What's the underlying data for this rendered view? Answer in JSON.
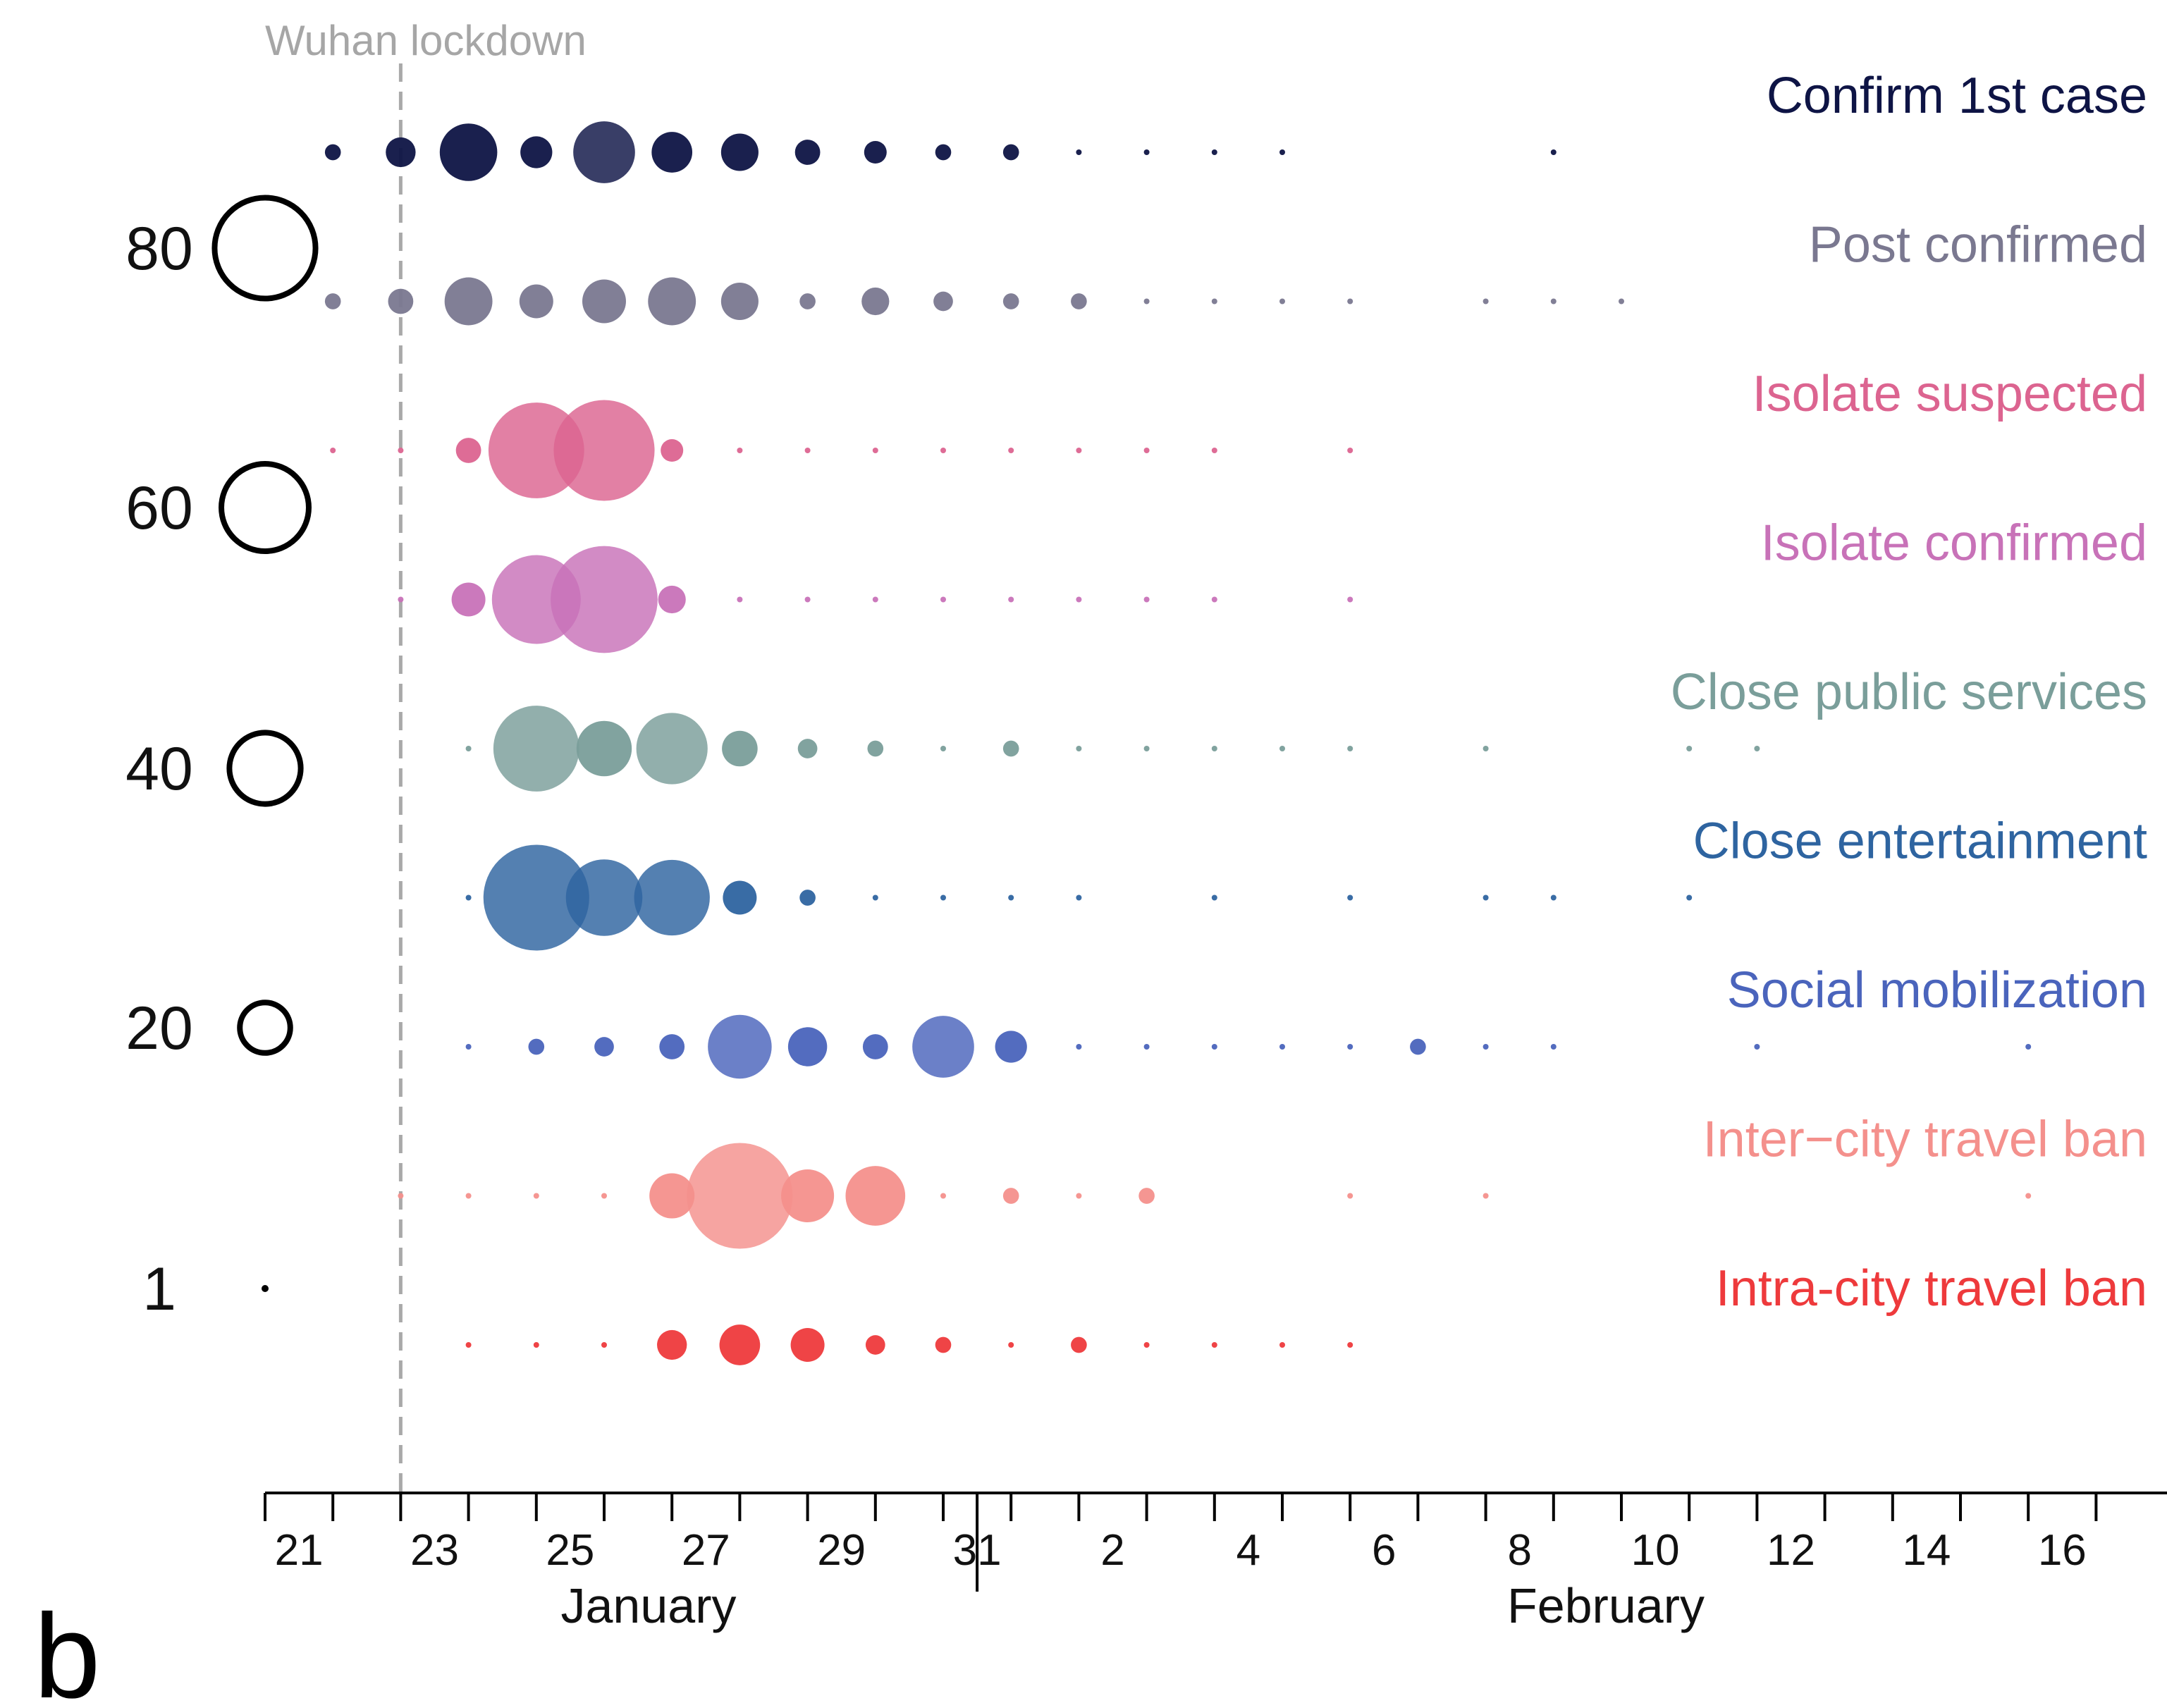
{
  "panel_label": "b",
  "chart_data": {
    "type": "scatter",
    "subtype": "bubble",
    "annotation": {
      "x": "Jan 23",
      "label": "Wuhan lockdown"
    },
    "x_axis": {
      "tick_labels": [
        "21",
        "23",
        "25",
        "27",
        "29",
        "31",
        "2",
        "4",
        "6",
        "8",
        "10",
        "12",
        "14",
        "16"
      ],
      "month_labels": [
        "January",
        "February"
      ],
      "range": [
        "Jan 21",
        "Feb 17"
      ]
    },
    "size_legend": {
      "values": [
        80,
        60,
        40,
        20,
        1
      ],
      "labels": [
        "80",
        "60",
        "40",
        "20",
        "1"
      ]
    },
    "series": [
      {
        "name": "Confirm 1st case",
        "color": "#0e1445",
        "points": [
          [
            "Jan 22",
            2
          ],
          [
            "Jan 23",
            7
          ],
          [
            "Jan 24",
            26
          ],
          [
            "Jan 25",
            8
          ],
          [
            "Jan 26",
            30
          ],
          [
            "Jan 27",
            13
          ],
          [
            "Jan 28",
            11
          ],
          [
            "Jan 29",
            5
          ],
          [
            "Jan 30",
            4
          ],
          [
            "Jan 31",
            2
          ],
          [
            "Feb 1",
            2
          ],
          [
            "Feb 2",
            1
          ],
          [
            "Feb 3",
            1
          ],
          [
            "Feb 4",
            1
          ],
          [
            "Feb 5",
            1
          ],
          [
            "Feb 9",
            1
          ]
        ]
      },
      {
        "name": "Post confirmed",
        "color": "#7a7890",
        "points": [
          [
            "Jan 22",
            2
          ],
          [
            "Jan 23",
            5
          ],
          [
            "Jan 24",
            18
          ],
          [
            "Jan 25",
            9
          ],
          [
            "Jan 26",
            15
          ],
          [
            "Jan 27",
            18
          ],
          [
            "Jan 28",
            11
          ],
          [
            "Jan 29",
            2
          ],
          [
            "Jan 30",
            6
          ],
          [
            "Jan 31",
            3
          ],
          [
            "Feb 1",
            2
          ],
          [
            "Feb 2",
            2
          ],
          [
            "Feb 3",
            1
          ],
          [
            "Feb 4",
            1
          ],
          [
            "Feb 5",
            1
          ],
          [
            "Feb 6",
            1
          ],
          [
            "Feb 8",
            1
          ],
          [
            "Feb 9",
            1
          ],
          [
            "Feb 10",
            1
          ]
        ]
      },
      {
        "name": "Isolate suspected",
        "color": "#dc6490",
        "points": [
          [
            "Jan 22",
            1
          ],
          [
            "Jan 23",
            1
          ],
          [
            "Jan 24",
            5
          ],
          [
            "Jan 25",
            72
          ],
          [
            "Jan 26",
            80
          ],
          [
            "Jan 27",
            4
          ],
          [
            "Jan 28",
            1
          ],
          [
            "Jan 29",
            1
          ],
          [
            "Jan 30",
            1
          ],
          [
            "Jan 31",
            1
          ],
          [
            "Feb 1",
            1
          ],
          [
            "Feb 2",
            1
          ],
          [
            "Feb 3",
            1
          ],
          [
            "Feb 4",
            1
          ],
          [
            "Feb 6",
            1
          ]
        ]
      },
      {
        "name": "Isolate confirmed",
        "color": "#c872b8",
        "points": [
          [
            "Jan 23",
            1
          ],
          [
            "Jan 24",
            9
          ],
          [
            "Jan 25",
            62
          ],
          [
            "Jan 26",
            90
          ],
          [
            "Jan 27",
            6
          ],
          [
            "Jan 28",
            1
          ],
          [
            "Jan 29",
            1
          ],
          [
            "Jan 30",
            1
          ],
          [
            "Jan 31",
            1
          ],
          [
            "Feb 1",
            1
          ],
          [
            "Feb 2",
            1
          ],
          [
            "Feb 3",
            1
          ],
          [
            "Feb 4",
            1
          ],
          [
            "Feb 6",
            1
          ]
        ]
      },
      {
        "name": "Close public services",
        "color": "#7a9e9a",
        "points": [
          [
            "Jan 24",
            1
          ],
          [
            "Jan 25",
            58
          ],
          [
            "Jan 26",
            24
          ],
          [
            "Jan 27",
            40
          ],
          [
            "Jan 28",
            10
          ],
          [
            "Jan 29",
            3
          ],
          [
            "Jan 30",
            2
          ],
          [
            "Jan 31",
            1
          ],
          [
            "Feb 1",
            2
          ],
          [
            "Feb 2",
            1
          ],
          [
            "Feb 3",
            1
          ],
          [
            "Feb 4",
            1
          ],
          [
            "Feb 5",
            1
          ],
          [
            "Feb 6",
            1
          ],
          [
            "Feb 8",
            1
          ],
          [
            "Feb 11",
            1
          ],
          [
            "Feb 12",
            1
          ]
        ]
      },
      {
        "name": "Close entertainment",
        "color": "#2e64a0",
        "points": [
          [
            "Jan 24",
            1
          ],
          [
            "Jan 25",
            88
          ],
          [
            "Jan 26",
            46
          ],
          [
            "Jan 27",
            45
          ],
          [
            "Jan 28",
            9
          ],
          [
            "Jan 29",
            2
          ],
          [
            "Jan 30",
            1
          ],
          [
            "Jan 31",
            1
          ],
          [
            "Feb 1",
            1
          ],
          [
            "Feb 2",
            1
          ],
          [
            "Feb 4",
            1
          ],
          [
            "Feb 6",
            1
          ],
          [
            "Feb 8",
            1
          ],
          [
            "Feb 9",
            1
          ],
          [
            "Feb 11",
            1
          ]
        ]
      },
      {
        "name": "Social mobilization",
        "color": "#4a64bc",
        "points": [
          [
            "Jan 24",
            1
          ],
          [
            "Jan 25",
            2
          ],
          [
            "Jan 26",
            3
          ],
          [
            "Jan 27",
            5
          ],
          [
            "Jan 28",
            32
          ],
          [
            "Jan 29",
            12
          ],
          [
            "Jan 30",
            5
          ],
          [
            "Jan 31",
            30
          ],
          [
            "Feb 1",
            8
          ],
          [
            "Feb 2",
            1
          ],
          [
            "Feb 3",
            1
          ],
          [
            "Feb 4",
            1
          ],
          [
            "Feb 5",
            1
          ],
          [
            "Feb 6",
            1
          ],
          [
            "Feb 7",
            2
          ],
          [
            "Feb 8",
            1
          ],
          [
            "Feb 9",
            1
          ],
          [
            "Feb 12",
            1
          ],
          [
            "Feb 16",
            1
          ]
        ]
      },
      {
        "name": "Inter−city travel ban",
        "color": "#f4908c",
        "points": [
          [
            "Jan 23",
            1
          ],
          [
            "Jan 24",
            1
          ],
          [
            "Jan 25",
            1
          ],
          [
            "Jan 26",
            1
          ],
          [
            "Jan 27",
            16
          ],
          [
            "Jan 28",
            88
          ],
          [
            "Jan 29",
            22
          ],
          [
            "Jan 30",
            28
          ],
          [
            "Jan 31",
            1
          ],
          [
            "Feb 1",
            2
          ],
          [
            "Feb 2",
            1
          ],
          [
            "Feb 3",
            2
          ],
          [
            "Feb 6",
            1
          ],
          [
            "Feb 8",
            1
          ],
          [
            "Feb 16",
            1
          ]
        ]
      },
      {
        "name": "Intra-city travel ban",
        "color": "#ee3a3c",
        "points": [
          [
            "Jan 24",
            1
          ],
          [
            "Jan 25",
            1
          ],
          [
            "Jan 26",
            1
          ],
          [
            "Jan 27",
            7
          ],
          [
            "Jan 28",
            13
          ],
          [
            "Jan 29",
            9
          ],
          [
            "Jan 30",
            3
          ],
          [
            "Jan 31",
            2
          ],
          [
            "Feb 1",
            1
          ],
          [
            "Feb 2",
            2
          ],
          [
            "Feb 3",
            1
          ],
          [
            "Feb 4",
            1
          ],
          [
            "Feb 5",
            1
          ],
          [
            "Feb 6",
            1
          ]
        ]
      }
    ]
  }
}
